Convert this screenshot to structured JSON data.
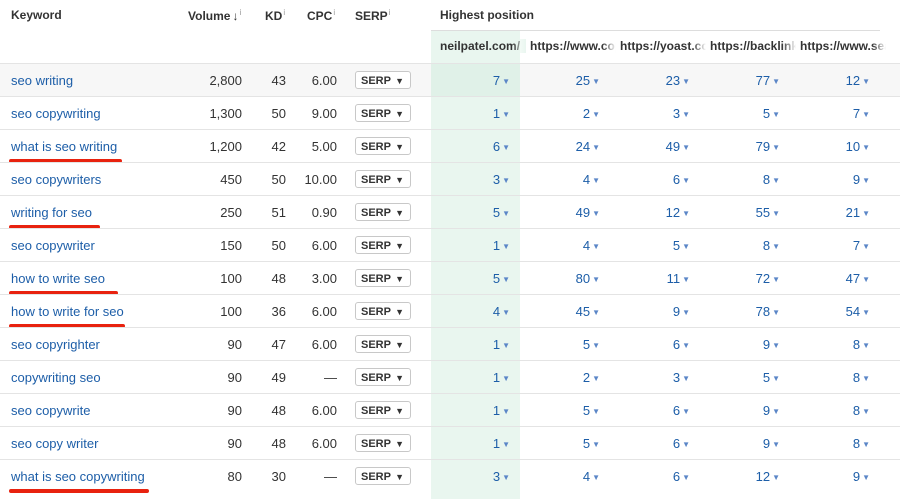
{
  "headers": {
    "keyword": "Keyword",
    "volume": "Volume",
    "volume_sort": "↓",
    "kd": "KD",
    "cpc": "CPC",
    "serp": "SERP",
    "info": "i",
    "highest_position": "Highest position"
  },
  "sites": [
    "neilpatel.com/",
    "https://www.copyblogger.com",
    "https://yoast.com",
    "https://backlinko.com",
    "https://www.searchenginejournal.com"
  ],
  "serp_button_label": "SERP",
  "rows": [
    {
      "keyword": "seo writing",
      "volume": "2,800",
      "kd": "43",
      "cpc": "6.00",
      "positions": [
        "7",
        "25",
        "23",
        "77",
        "12"
      ]
    },
    {
      "keyword": "seo copywriting",
      "volume": "1,300",
      "kd": "50",
      "cpc": "9.00",
      "positions": [
        "1",
        "2",
        "3",
        "5",
        "7"
      ]
    },
    {
      "keyword": "what is seo writing",
      "volume": "1,200",
      "kd": "42",
      "cpc": "5.00",
      "positions": [
        "6",
        "24",
        "49",
        "79",
        "10"
      ],
      "underlined": true
    },
    {
      "keyword": "seo copywriters",
      "volume": "450",
      "kd": "50",
      "cpc": "10.00",
      "positions": [
        "3",
        "4",
        "6",
        "8",
        "9"
      ]
    },
    {
      "keyword": "writing for seo",
      "volume": "250",
      "kd": "51",
      "cpc": "0.90",
      "positions": [
        "5",
        "49",
        "12",
        "55",
        "21"
      ],
      "underlined": true
    },
    {
      "keyword": "seo copywriter",
      "volume": "150",
      "kd": "50",
      "cpc": "6.00",
      "positions": [
        "1",
        "4",
        "5",
        "8",
        "7"
      ]
    },
    {
      "keyword": "how to write seo",
      "volume": "100",
      "kd": "48",
      "cpc": "3.00",
      "positions": [
        "5",
        "80",
        "11",
        "72",
        "47"
      ],
      "underlined": true
    },
    {
      "keyword": "how to write for seo",
      "volume": "100",
      "kd": "36",
      "cpc": "6.00",
      "positions": [
        "4",
        "45",
        "9",
        "78",
        "54"
      ],
      "underlined": true
    },
    {
      "keyword": "seo copyrighter",
      "volume": "90",
      "kd": "47",
      "cpc": "6.00",
      "positions": [
        "1",
        "5",
        "6",
        "9",
        "8"
      ]
    },
    {
      "keyword": "copywriting seo",
      "volume": "90",
      "kd": "49",
      "cpc": "—",
      "positions": [
        "1",
        "2",
        "3",
        "5",
        "8"
      ]
    },
    {
      "keyword": "seo copywrite",
      "volume": "90",
      "kd": "48",
      "cpc": "6.00",
      "positions": [
        "1",
        "5",
        "6",
        "9",
        "8"
      ]
    },
    {
      "keyword": "seo copy writer",
      "volume": "90",
      "kd": "48",
      "cpc": "6.00",
      "positions": [
        "1",
        "5",
        "6",
        "9",
        "8"
      ]
    },
    {
      "keyword": "what is seo copywriting",
      "volume": "80",
      "kd": "30",
      "cpc": "—",
      "positions": [
        "3",
        "4",
        "6",
        "12",
        "9"
      ],
      "underlined": true
    }
  ],
  "colors": {
    "link": "#1d5ea8",
    "highlight_column": "#e9f6ef",
    "annotation_underline": "#e8220f"
  },
  "icons": {
    "position_caret": "caret-down-icon",
    "serp_caret": "caret-down-icon",
    "sort": "sort-desc-icon"
  }
}
